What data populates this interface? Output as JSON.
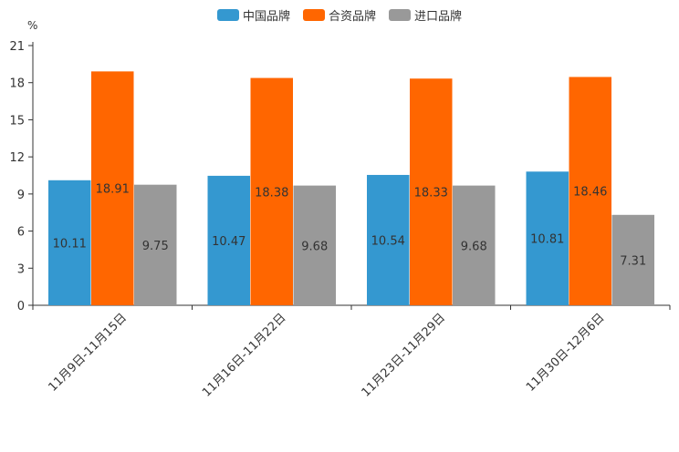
{
  "chart_data": {
    "type": "bar",
    "unit": "%",
    "categories": [
      "11月9日-11月15日",
      "11月16日-11月22日",
      "11月23日-11月29日",
      "11月30日-12月6日"
    ],
    "series": [
      {
        "name": "中国品牌",
        "color": "#3498d0",
        "values": [
          10.11,
          10.47,
          10.54,
          10.81
        ]
      },
      {
        "name": "合资品牌",
        "color": "#ff6600",
        "values": [
          18.91,
          18.38,
          18.33,
          18.46
        ]
      },
      {
        "name": "进口品牌",
        "color": "#999999",
        "values": [
          9.75,
          9.68,
          9.68,
          7.31
        ]
      }
    ],
    "yticks": [
      0,
      3,
      6,
      9,
      12,
      15,
      18,
      21
    ],
    "ylim": [
      0,
      21
    ],
    "legend_position": "top-center",
    "grid": false
  }
}
